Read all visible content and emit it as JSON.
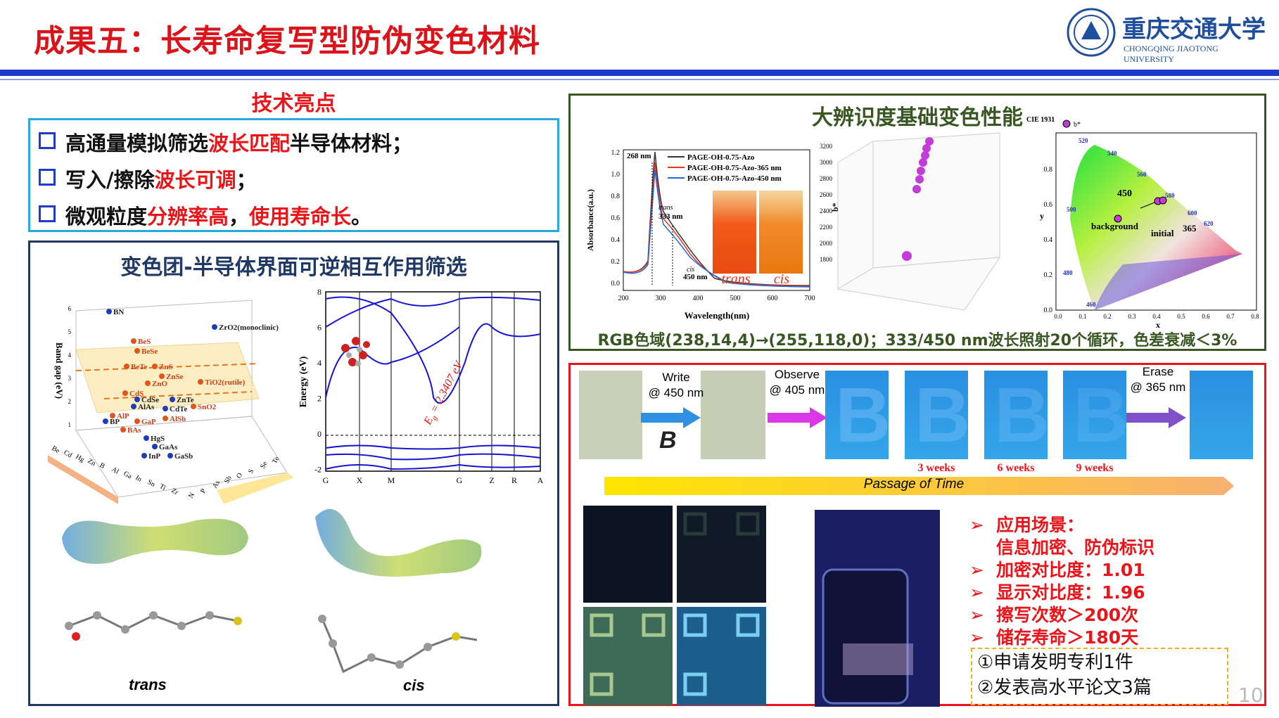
{
  "header": {
    "title": "成果五：长寿命复写型防伪变色材料",
    "logo_cn": "重庆交通大学",
    "logo_en": "CHONGQING JIAOTONG UNIVERSITY"
  },
  "highlights": {
    "title": "技术亮点",
    "items": [
      {
        "segments": [
          {
            "text": "高通量模拟筛选",
            "highlight": false
          },
          {
            "text": "波长匹配",
            "highlight": true
          },
          {
            "text": "半导体材料；",
            "highlight": false
          }
        ]
      },
      {
        "segments": [
          {
            "text": "写入/擦除",
            "highlight": false
          },
          {
            "text": "波长可调",
            "highlight": true
          },
          {
            "text": "；",
            "highlight": false
          }
        ]
      },
      {
        "segments": [
          {
            "text": "微观粒度",
            "highlight": false
          },
          {
            "text": "分辨率高",
            "highlight": true
          },
          {
            "text": "，",
            "highlight": false
          },
          {
            "text": "使用寿命长",
            "highlight": true
          },
          {
            "text": "。",
            "highlight": false
          }
        ]
      }
    ]
  },
  "screening": {
    "title": "变色团-半导体界面可逆相互作用筛选",
    "plot3d": {
      "zlabel": "Band gap (eV)",
      "zticks": [
        "6",
        "5",
        "4",
        "3",
        "2",
        "1"
      ],
      "points": [
        "BN",
        "ZrO2(monoclinic)",
        "BeS",
        "BeSe",
        "BeTe",
        "ZnS",
        "ZnSe",
        "ZnO",
        "TiO2(rutile)",
        "CdS",
        "CdSe",
        "ZnTe",
        "AlAs",
        "CdTe",
        "SnO2",
        "AlP",
        "GaP",
        "AlSb",
        "BP",
        "BAs",
        "HgS",
        "GaAs",
        "InP",
        "GaSb"
      ],
      "cations": [
        "Be",
        "Cd",
        "Hg",
        "Zn",
        "B",
        "Al",
        "Ga",
        "In",
        "Sn",
        "Ti",
        "Zr"
      ],
      "anions": [
        "N",
        "P",
        "As",
        "Sb",
        "O",
        "S",
        "Se",
        "Te"
      ]
    },
    "band": {
      "ylabel": "Energy (eV)",
      "yticks": [
        "8",
        "6",
        "4",
        "2",
        "0",
        "-2"
      ],
      "kpoints": [
        "G",
        "X",
        "M",
        "G",
        "Z",
        "R",
        "A"
      ],
      "gap": {
        "symbol": "E",
        "subscript": "g",
        "value": " = 2.3407 eV"
      }
    },
    "molecules": [
      "trans",
      "cis"
    ]
  },
  "color_performance": {
    "title": "大辨识度基础变色性能",
    "absorbance": {
      "ylabel": "Absorbance(a.u.)",
      "xlabel": "Wavelength(nm)",
      "yticks": [
        "0.0",
        "0.2",
        "0.4",
        "0.6",
        "0.8",
        "1.0",
        "1.2"
      ],
      "xticks": [
        "200",
        "300",
        "400",
        "500",
        "600",
        "700"
      ],
      "legend": [
        "PAGE-OH-0.75-Azo",
        "PAGE-OH-0.75-Azo-365 nm",
        "PAGE-OH-0.75-Azo-450 nm"
      ],
      "annotations": [
        "268 nm",
        "trans",
        "333 nm",
        "cis",
        "450 nm"
      ],
      "photo_labels": [
        "trans",
        "cis"
      ]
    },
    "scatter3d": {
      "zlabel": "b*",
      "zticks": [
        "3200",
        "3000",
        "2800",
        "2600",
        "2400",
        "2200",
        "2000",
        "1800"
      ]
    },
    "cie": {
      "title": "CIE 1931",
      "legend": "b*",
      "xlabel": "x",
      "ylabel": "y",
      "yticks": [
        "0.0",
        "0.2",
        "0.4",
        "0.6",
        "0.8"
      ],
      "xticks": [
        "0.0",
        "0.1",
        "0.2",
        "0.3",
        "0.4",
        "0.5",
        "0.6",
        "0.7",
        "0.8"
      ],
      "wavelengths": [
        "460",
        "480",
        "500",
        "520",
        "540",
        "560",
        "580",
        "600",
        "620"
      ],
      "annotations": [
        "450",
        "background",
        "initial",
        "365"
      ]
    },
    "caption": "RGB色域(238,14,4)→(255,118,0)；333/450 nm波长照射20个循环，色差衰减＜3%"
  },
  "writing": {
    "steps": [
      {
        "action": "Write",
        "wavelength": "@ 450 nm"
      },
      {
        "action": "Observe",
        "wavelength": "@ 405 nm"
      },
      {
        "action": "Erase",
        "wavelength": "@ 365 nm"
      }
    ],
    "letter": "B",
    "weeks": [
      "3 weeks",
      "6 weeks",
      "9 weeks"
    ],
    "timeline": "Passage of Time",
    "applications": [
      "应用场景：",
      "信息加密、防伪标识",
      "加密对比度：1.01",
      "显示对比度：1.96",
      "擦写次数＞200次",
      "储存寿命＞180天"
    ],
    "outputs": [
      "①申请发明专利1件",
      "②发表高水平论文3篇"
    ]
  },
  "page_number": "10"
}
